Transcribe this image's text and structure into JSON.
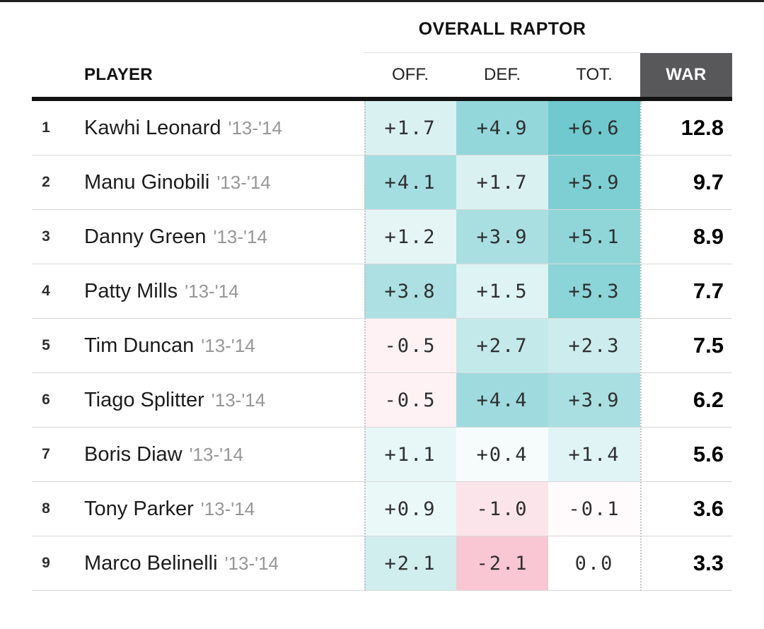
{
  "table": {
    "group_header": "OVERALL RAPTOR",
    "columns": {
      "player": "PLAYER",
      "off": "OFF.",
      "def": "DEF.",
      "tot": "TOT.",
      "war": "WAR"
    },
    "war_header_bg": "#58585a",
    "positive_color": "#66c6cb",
    "negative_color": "#f7aec2",
    "rows": [
      {
        "rank": "1",
        "name": "Kawhi Leonard",
        "season": "'13-'14",
        "off": "+1.7",
        "def": "+4.9",
        "tot": "+6.6",
        "war": "12.8",
        "colors": {
          "off": "#DAF1F2",
          "def": "#94D7DB",
          "tot": "#6FC9CE"
        }
      },
      {
        "rank": "2",
        "name": "Manu Ginobili",
        "season": "'13-'14",
        "off": "+4.1",
        "def": "+1.7",
        "tot": "+5.9",
        "war": "9.7",
        "colors": {
          "off": "#A5DEE1",
          "def": "#DAF1F2",
          "tot": "#7ECFD3"
        }
      },
      {
        "rank": "3",
        "name": "Danny Green",
        "season": "'13-'14",
        "off": "+1.2",
        "def": "+3.9",
        "tot": "+5.1",
        "war": "8.9",
        "colors": {
          "off": "#E5F5F6",
          "def": "#AADFE2",
          "tot": "#90D6D9"
        }
      },
      {
        "rank": "4",
        "name": "Patty Mills",
        "season": "'13-'14",
        "off": "+3.8",
        "def": "+1.5",
        "tot": "+5.3",
        "war": "7.7",
        "colors": {
          "off": "#ACE0E3",
          "def": "#DEF3F4",
          "tot": "#8BD4D8"
        }
      },
      {
        "rank": "5",
        "name": "Tim Duncan",
        "season": "'13-'14",
        "off": "-0.5",
        "def": "+2.7",
        "tot": "+2.3",
        "war": "7.5",
        "colors": {
          "off": "#FEF2F5",
          "def": "#C4E9EB",
          "tot": "#CDECEE"
        }
      },
      {
        "rank": "6",
        "name": "Tiago Splitter",
        "season": "'13-'14",
        "off": "-0.5",
        "def": "+4.4",
        "tot": "+3.9",
        "war": "6.2",
        "colors": {
          "off": "#FEF2F5",
          "def": "#9FDBDE",
          "tot": "#AADFE2"
        }
      },
      {
        "rank": "7",
        "name": "Boris Diaw",
        "season": "'13-'14",
        "off": "+1.1",
        "def": "+0.4",
        "tot": "+1.4",
        "war": "5.6",
        "colors": {
          "off": "#E7F6F7",
          "def": "#F6FCFC",
          "tot": "#E0F4F5"
        }
      },
      {
        "rank": "8",
        "name": "Tony Parker",
        "season": "'13-'14",
        "off": "+0.9",
        "def": "-1.0",
        "tot": "-0.1",
        "war": "3.6",
        "colors": {
          "off": "#EBF8F8",
          "def": "#FCE4EB",
          "tot": "#FFFBFC"
        }
      },
      {
        "rank": "9",
        "name": "Marco Belinelli",
        "season": "'13-'14",
        "off": "+2.1",
        "def": "-2.1",
        "tot": "0.0",
        "war": "3.3",
        "colors": {
          "off": "#D1EEEF",
          "def": "#F9C6D4",
          "tot": "#FFFFFF"
        }
      }
    ]
  },
  "chart_data": {
    "type": "table",
    "title": "OVERALL RAPTOR",
    "columns": [
      "PLAYER",
      "OFF.",
      "DEF.",
      "TOT.",
      "WAR"
    ],
    "rows": [
      [
        "Kawhi Leonard '13-'14",
        1.7,
        4.9,
        6.6,
        12.8
      ],
      [
        "Manu Ginobili '13-'14",
        4.1,
        1.7,
        5.9,
        9.7
      ],
      [
        "Danny Green '13-'14",
        1.2,
        3.9,
        5.1,
        8.9
      ],
      [
        "Patty Mills '13-'14",
        3.8,
        1.5,
        5.3,
        7.7
      ],
      [
        "Tim Duncan '13-'14",
        -0.5,
        2.7,
        2.3,
        7.5
      ],
      [
        "Tiago Splitter '13-'14",
        -0.5,
        4.4,
        3.9,
        6.2
      ],
      [
        "Boris Diaw '13-'14",
        1.1,
        0.4,
        1.4,
        5.6
      ],
      [
        "Tony Parker '13-'14",
        0.9,
        -1.0,
        -0.1,
        3.6
      ],
      [
        "Marco Belinelli '13-'14",
        2.1,
        -2.1,
        0.0,
        3.3
      ]
    ],
    "layout_hints": {
      "heatmap_columns": [
        "OFF.",
        "DEF.",
        "TOT."
      ],
      "positive_scale_max_color": "#66c6cb",
      "negative_scale_max_color": "#f7aec2"
    }
  }
}
